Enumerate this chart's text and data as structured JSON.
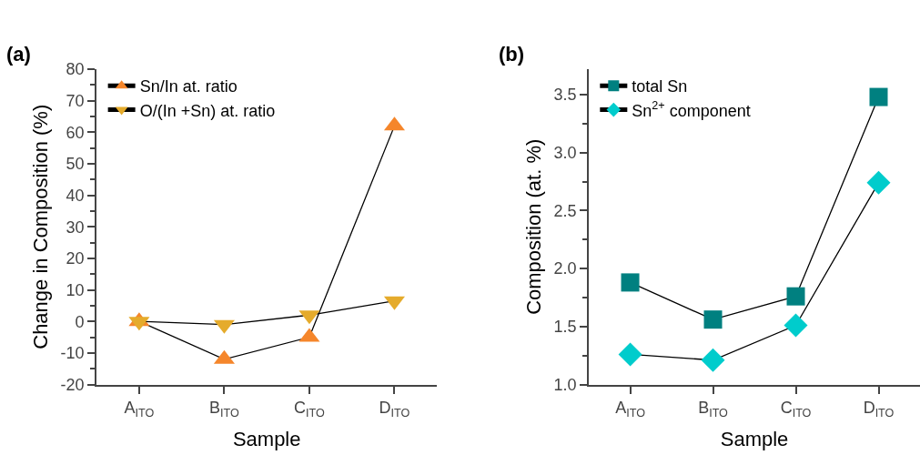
{
  "chart_data": [
    {
      "type": "line",
      "title": "(a)",
      "xlabel": "Sample",
      "ylabel": "Change in Composition (%)",
      "categories": [
        "A$_{ITO}$",
        "B$_{ITO}$",
        "C$_{ITO}$",
        "D$_{ITO}$"
      ],
      "ylim": [
        -20,
        80
      ],
      "yticks": [
        -20,
        -10,
        0,
        10,
        20,
        30,
        40,
        50,
        60,
        70,
        80
      ],
      "legend": "top left",
      "series": [
        {
          "name": "Sn/In at. ratio",
          "color": "#f5862b",
          "marker": "triangle",
          "values": [
            0,
            -12,
            -5,
            62
          ]
        },
        {
          "name": "O/(In +Sn) at. ratio",
          "color": "#e5ab2c",
          "marker": "triangle-down",
          "values": [
            0,
            -1,
            2,
            6.5
          ]
        }
      ]
    },
    {
      "type": "line",
      "title": "(b)",
      "xlabel": "Sample",
      "ylabel": "Composition (at. %)",
      "categories": [
        "A$_{ITO}$",
        "B$_{ITO}$",
        "C$_{ITO}$",
        "D$_{ITO}$"
      ],
      "ylim": [
        1.0,
        3.72
      ],
      "yticks": [
        {
          "value": 1.0,
          "label": "1.0"
        },
        {
          "value": 1.5,
          "label": "1.5"
        },
        {
          "value": 2.0,
          "label": "2.0"
        },
        {
          "value": 2.5,
          "label": "2.5"
        },
        {
          "value": 3.0,
          "label": "3.0"
        },
        {
          "value": 3.5,
          "label": "3.5"
        }
      ],
      "legend": "top left",
      "series": [
        {
          "name": "total Sn",
          "color": "#008080",
          "marker": "square",
          "values": [
            1.88,
            1.56,
            1.76,
            3.48
          ]
        },
        {
          "name": "Sn$^{2+}$ component",
          "color": "#00cccc",
          "marker": "diamond",
          "values": [
            1.26,
            1.21,
            1.51,
            2.74
          ]
        }
      ]
    }
  ]
}
